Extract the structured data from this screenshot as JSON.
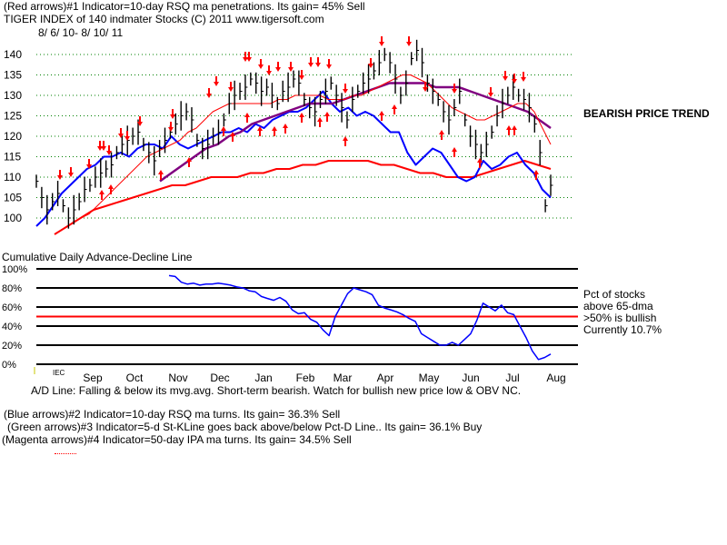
{
  "header": {
    "line1": "(Red arrows)#1 Indicator=10-day RSQ ma penetrations.  Its gain= 45% Sell",
    "line2": "TIGER INDEX of  140 indmater Stocks  (C) 2011   www.tigersoft.com",
    "line3": "8/ 6/ 10-  8/ 10/ 11"
  },
  "right_notes": {
    "trend": "BEARISH PRICE TREND",
    "pct1": "Pct of stocks",
    "pct2": "above 65-dma",
    "pct3": ">50% is bullish",
    "pct4": "Currently  10.7%"
  },
  "lower_caption": "Cumulative Daily Advance-Decline Line",
  "ad_note": "A/D Line: Falling & below its mvg.avg. Short-term bearish. Watch for bullish new price low & OBV NC.",
  "footer": {
    "blue": "(Blue arrows)#2 Indicator=10-day RSQ ma turns.  Its gain= 36.3% Sell",
    "green": "(Green arrows)#3 Indicator=5-d St-KLine goes back above/below Pct-D Line..  Its gain= 36.1% Buy",
    "magenta": "(Magenta arrows)#4 Indicator=50-day IPA ma turns.  Its gain= 34.5% Sell"
  },
  "colors": {
    "price_bar": "#000000",
    "ma_fast": "#ff0000",
    "ma_slow": "#800080",
    "ad_line": "#0000ff",
    "ad_ma": "#ff0000",
    "pct_line": "#0000ff",
    "grid": "#008000",
    "arrow": "#ff0000",
    "line_50": "#ff0000"
  },
  "chart_data": [
    {
      "type": "line",
      "title": "TIGER INDEX of  140 indmater Stocks",
      "ylim": [
        97,
        143
      ],
      "yticks": [
        "100",
        "105",
        "110",
        "115",
        "120",
        "125",
        "130",
        "135",
        "140"
      ],
      "x_months": [
        "Sep",
        "Oct",
        "Nov",
        "Dec",
        "Jan",
        "Feb",
        "Mar",
        "Apr",
        "May",
        "Jun",
        "Jul",
        "Aug"
      ],
      "price_path": [
        109,
        105,
        102,
        104,
        106,
        103,
        100,
        102,
        104,
        107,
        108,
        110,
        111,
        112,
        113,
        116,
        118,
        119,
        120,
        121,
        118,
        116,
        114,
        117,
        119,
        121,
        123,
        125,
        126,
        124,
        119,
        117,
        118,
        120,
        121,
        124,
        128,
        130,
        131,
        132,
        134,
        133,
        131,
        132,
        130,
        128,
        131,
        132,
        134,
        133,
        129,
        127,
        126,
        129,
        131,
        133,
        130,
        127,
        124,
        129,
        131,
        133,
        134,
        136,
        138,
        140,
        138,
        134,
        130,
        133,
        139,
        141,
        138,
        133,
        131,
        129,
        126,
        124,
        127,
        131,
        124,
        120,
        118,
        116,
        118,
        121,
        125,
        128,
        130,
        132,
        130,
        129,
        127,
        123,
        116,
        103,
        108
      ],
      "ma_fast_path": [
        99,
        100,
        101,
        103,
        105,
        107,
        109,
        111,
        113,
        115,
        116,
        117,
        118,
        119,
        121,
        122,
        124,
        126,
        127,
        128,
        128,
        128,
        128,
        128,
        128,
        129,
        129,
        130,
        130,
        130,
        130,
        129,
        129,
        129,
        130,
        130,
        131,
        132,
        133,
        134,
        135,
        135,
        134,
        133,
        131,
        129,
        127,
        126,
        125,
        124,
        124,
        125,
        126,
        127,
        128,
        128,
        126,
        122,
        118
      ],
      "ma_slow_path": [
        109,
        111,
        113,
        115,
        117,
        118,
        120,
        121,
        123,
        124,
        125,
        126,
        127,
        128,
        128,
        128,
        129,
        130,
        131,
        132,
        133,
        133,
        133,
        133,
        132,
        132,
        132,
        131,
        130,
        129,
        128,
        127,
        126,
        124,
        122
      ],
      "ad_label_fragment": "IEC",
      "ad_line_path": [
        98,
        100,
        103,
        106,
        108,
        110,
        112,
        113,
        115,
        115,
        116,
        115,
        117,
        118,
        118,
        117,
        120,
        118,
        117,
        118,
        119,
        120,
        121,
        121,
        122,
        121,
        123,
        122,
        124,
        125,
        126,
        126,
        127,
        129,
        131,
        128,
        126,
        127,
        125,
        126,
        125,
        123,
        121,
        121,
        116,
        113,
        115,
        117,
        116,
        113,
        110,
        109,
        110,
        114,
        112,
        113,
        115,
        116,
        113,
        111,
        107,
        105
      ],
      "ad_ma_path": [
        96,
        98,
        100,
        102,
        103,
        104,
        105,
        106,
        107,
        108,
        108,
        109,
        110,
        110,
        110,
        111,
        111,
        112,
        112,
        113,
        113,
        114,
        114,
        114,
        114,
        113,
        113,
        112,
        111,
        111,
        110,
        110,
        110,
        111,
        112,
        113,
        114,
        113,
        112
      ],
      "sell_arrow_count": 34,
      "buy_arrow_count": 22
    },
    {
      "type": "line",
      "title": "Pct of stocks above 65-dma",
      "ylim": [
        0,
        100
      ],
      "yticks": [
        "0%",
        "20%",
        "40%",
        "60%",
        "80%",
        "100%"
      ],
      "threshold": 50,
      "current": 10.7,
      "pct_path": [
        93,
        92,
        86,
        84,
        85,
        83,
        84,
        84,
        85,
        84,
        83,
        81,
        80,
        77,
        76,
        71,
        69,
        67,
        70,
        66,
        57,
        53,
        54,
        47,
        44,
        36,
        30,
        50,
        62,
        74,
        80,
        78,
        76,
        73,
        62,
        59,
        57,
        55,
        52,
        48,
        45,
        32,
        28,
        24,
        20,
        20,
        23,
        20,
        26,
        32,
        46,
        64,
        60,
        56,
        62,
        54,
        52,
        40,
        28,
        14,
        5,
        7,
        10.7
      ]
    }
  ]
}
